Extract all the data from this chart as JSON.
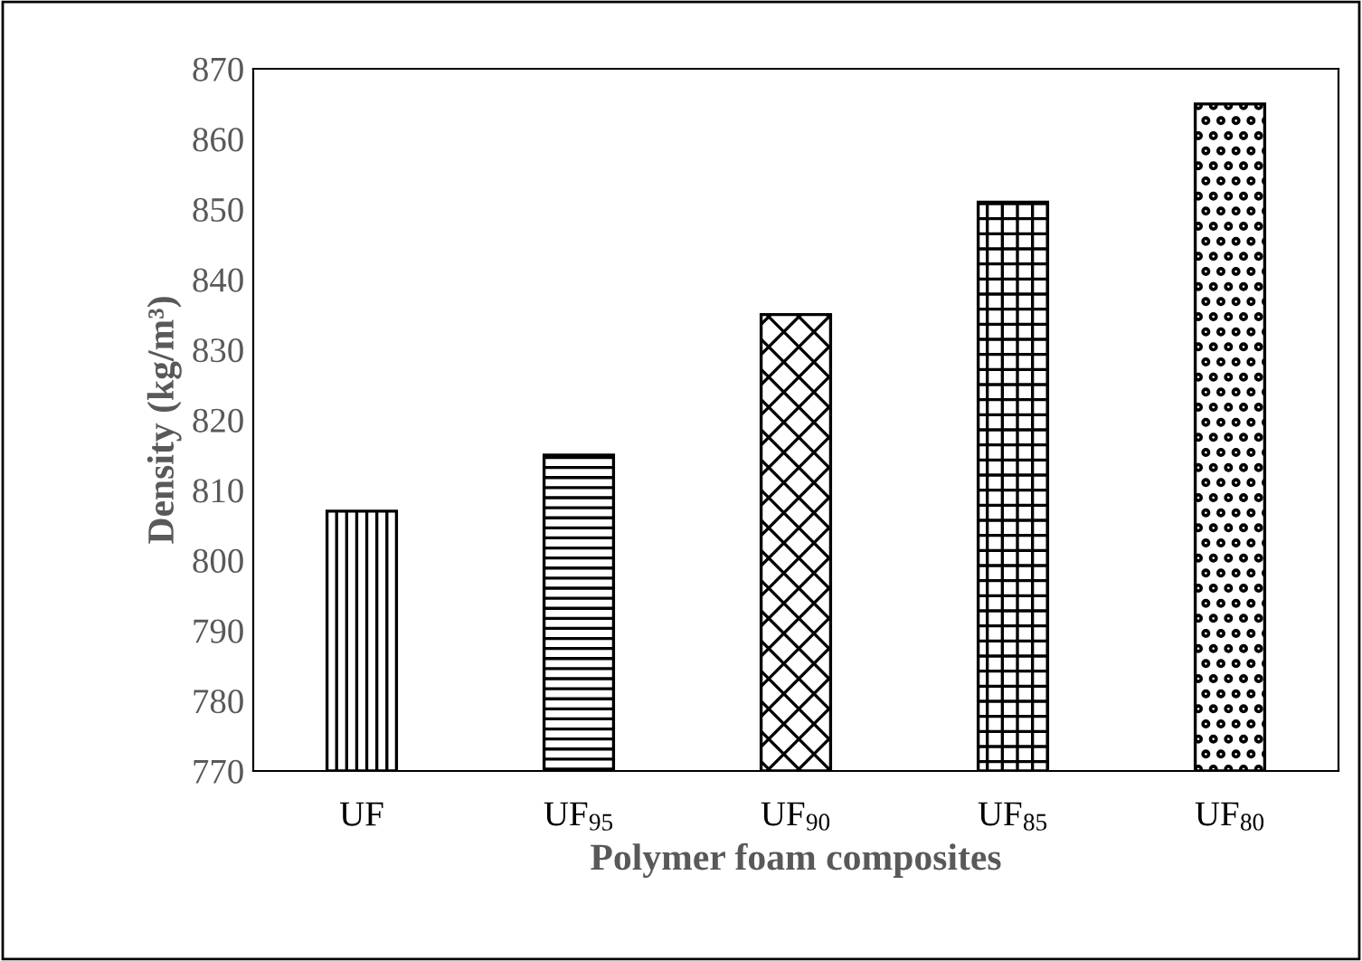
{
  "chart_data": {
    "type": "bar",
    "xlabel": "Polymer foam composites",
    "ylabel": "Density (kg/m³)",
    "categories": [
      "UF",
      "UF$_{95}$",
      "UF$_{90}$",
      "UF$_{85}$",
      "UF$_{80}$"
    ],
    "values": [
      807,
      815,
      835,
      851,
      865
    ],
    "color": "#000000",
    "ylim": [
      770,
      870
    ],
    "yticks": [
      770,
      780,
      790,
      800,
      810,
      820,
      830,
      840,
      850,
      860,
      870
    ],
    "grid": false,
    "legend": false
  }
}
